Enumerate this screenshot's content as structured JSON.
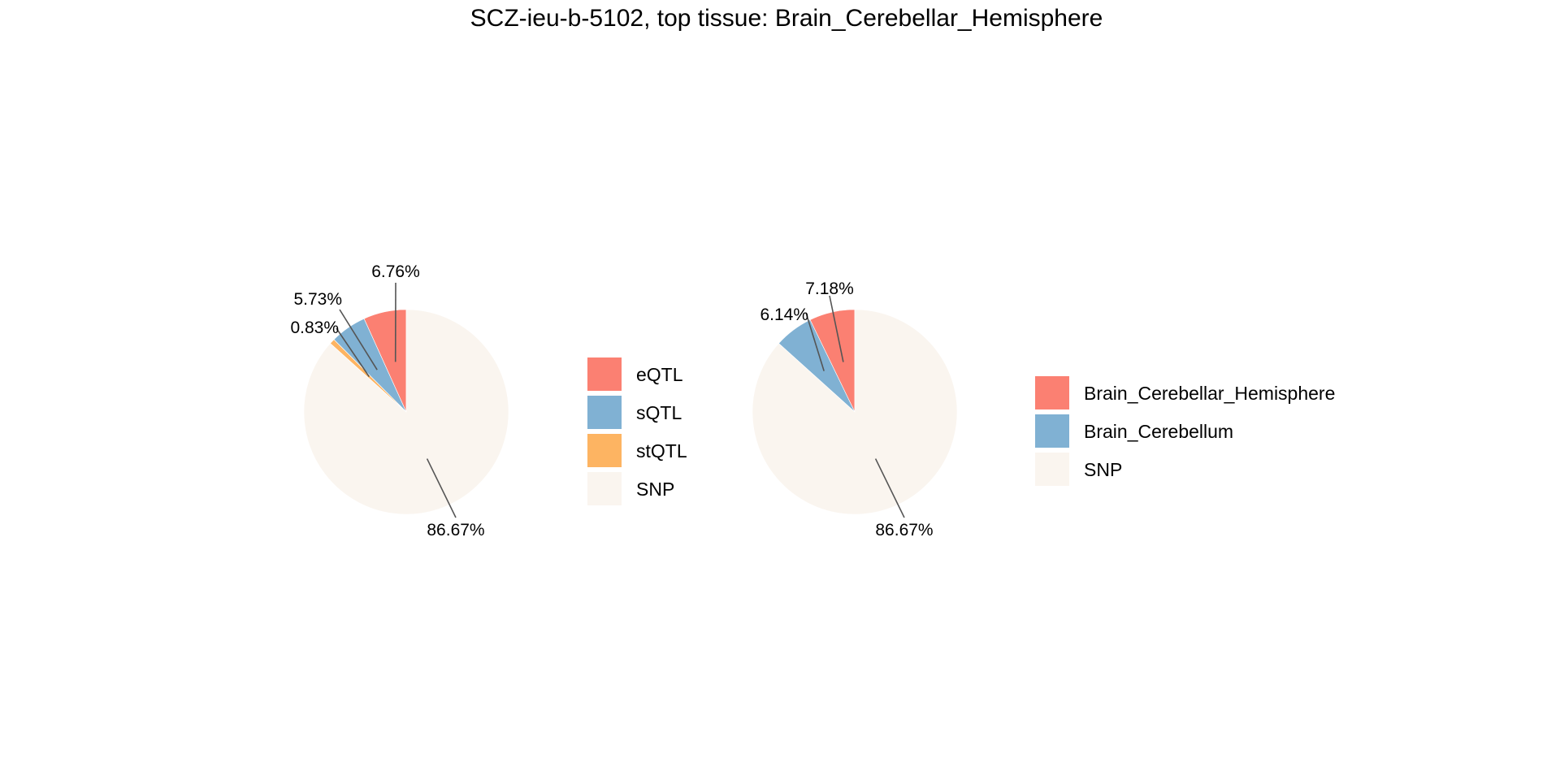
{
  "chart_data": [
    {
      "type": "pie",
      "title": "SCZ-ieu-b-5102, top tissue: Brain_Cerebellar_Hemisphere",
      "legend_placement": "right",
      "slices": [
        {
          "label": "eQTL",
          "value": 6.76,
          "display": "6.76%",
          "color": "#FB8072"
        },
        {
          "label": "sQTL",
          "value": 5.73,
          "display": "5.73%",
          "color": "#80B1D3"
        },
        {
          "label": "stQTL",
          "value": 0.83,
          "display": "0.83%",
          "color": "#FDB462"
        },
        {
          "label": "SNP",
          "value": 86.67,
          "display": "86.67%",
          "color": "#FAF5EF"
        }
      ]
    },
    {
      "type": "pie",
      "legend_placement": "right",
      "slices": [
        {
          "label": "Brain_Cerebellar_Hemisphere",
          "value": 7.18,
          "display": "7.18%",
          "color": "#FB8072"
        },
        {
          "label": "Brain_Cerebellum",
          "value": 6.14,
          "display": "6.14%",
          "color": "#80B1D3"
        },
        {
          "label": "SNP",
          "value": 86.67,
          "display": "86.67%",
          "color": "#FAF5EF"
        }
      ]
    }
  ]
}
